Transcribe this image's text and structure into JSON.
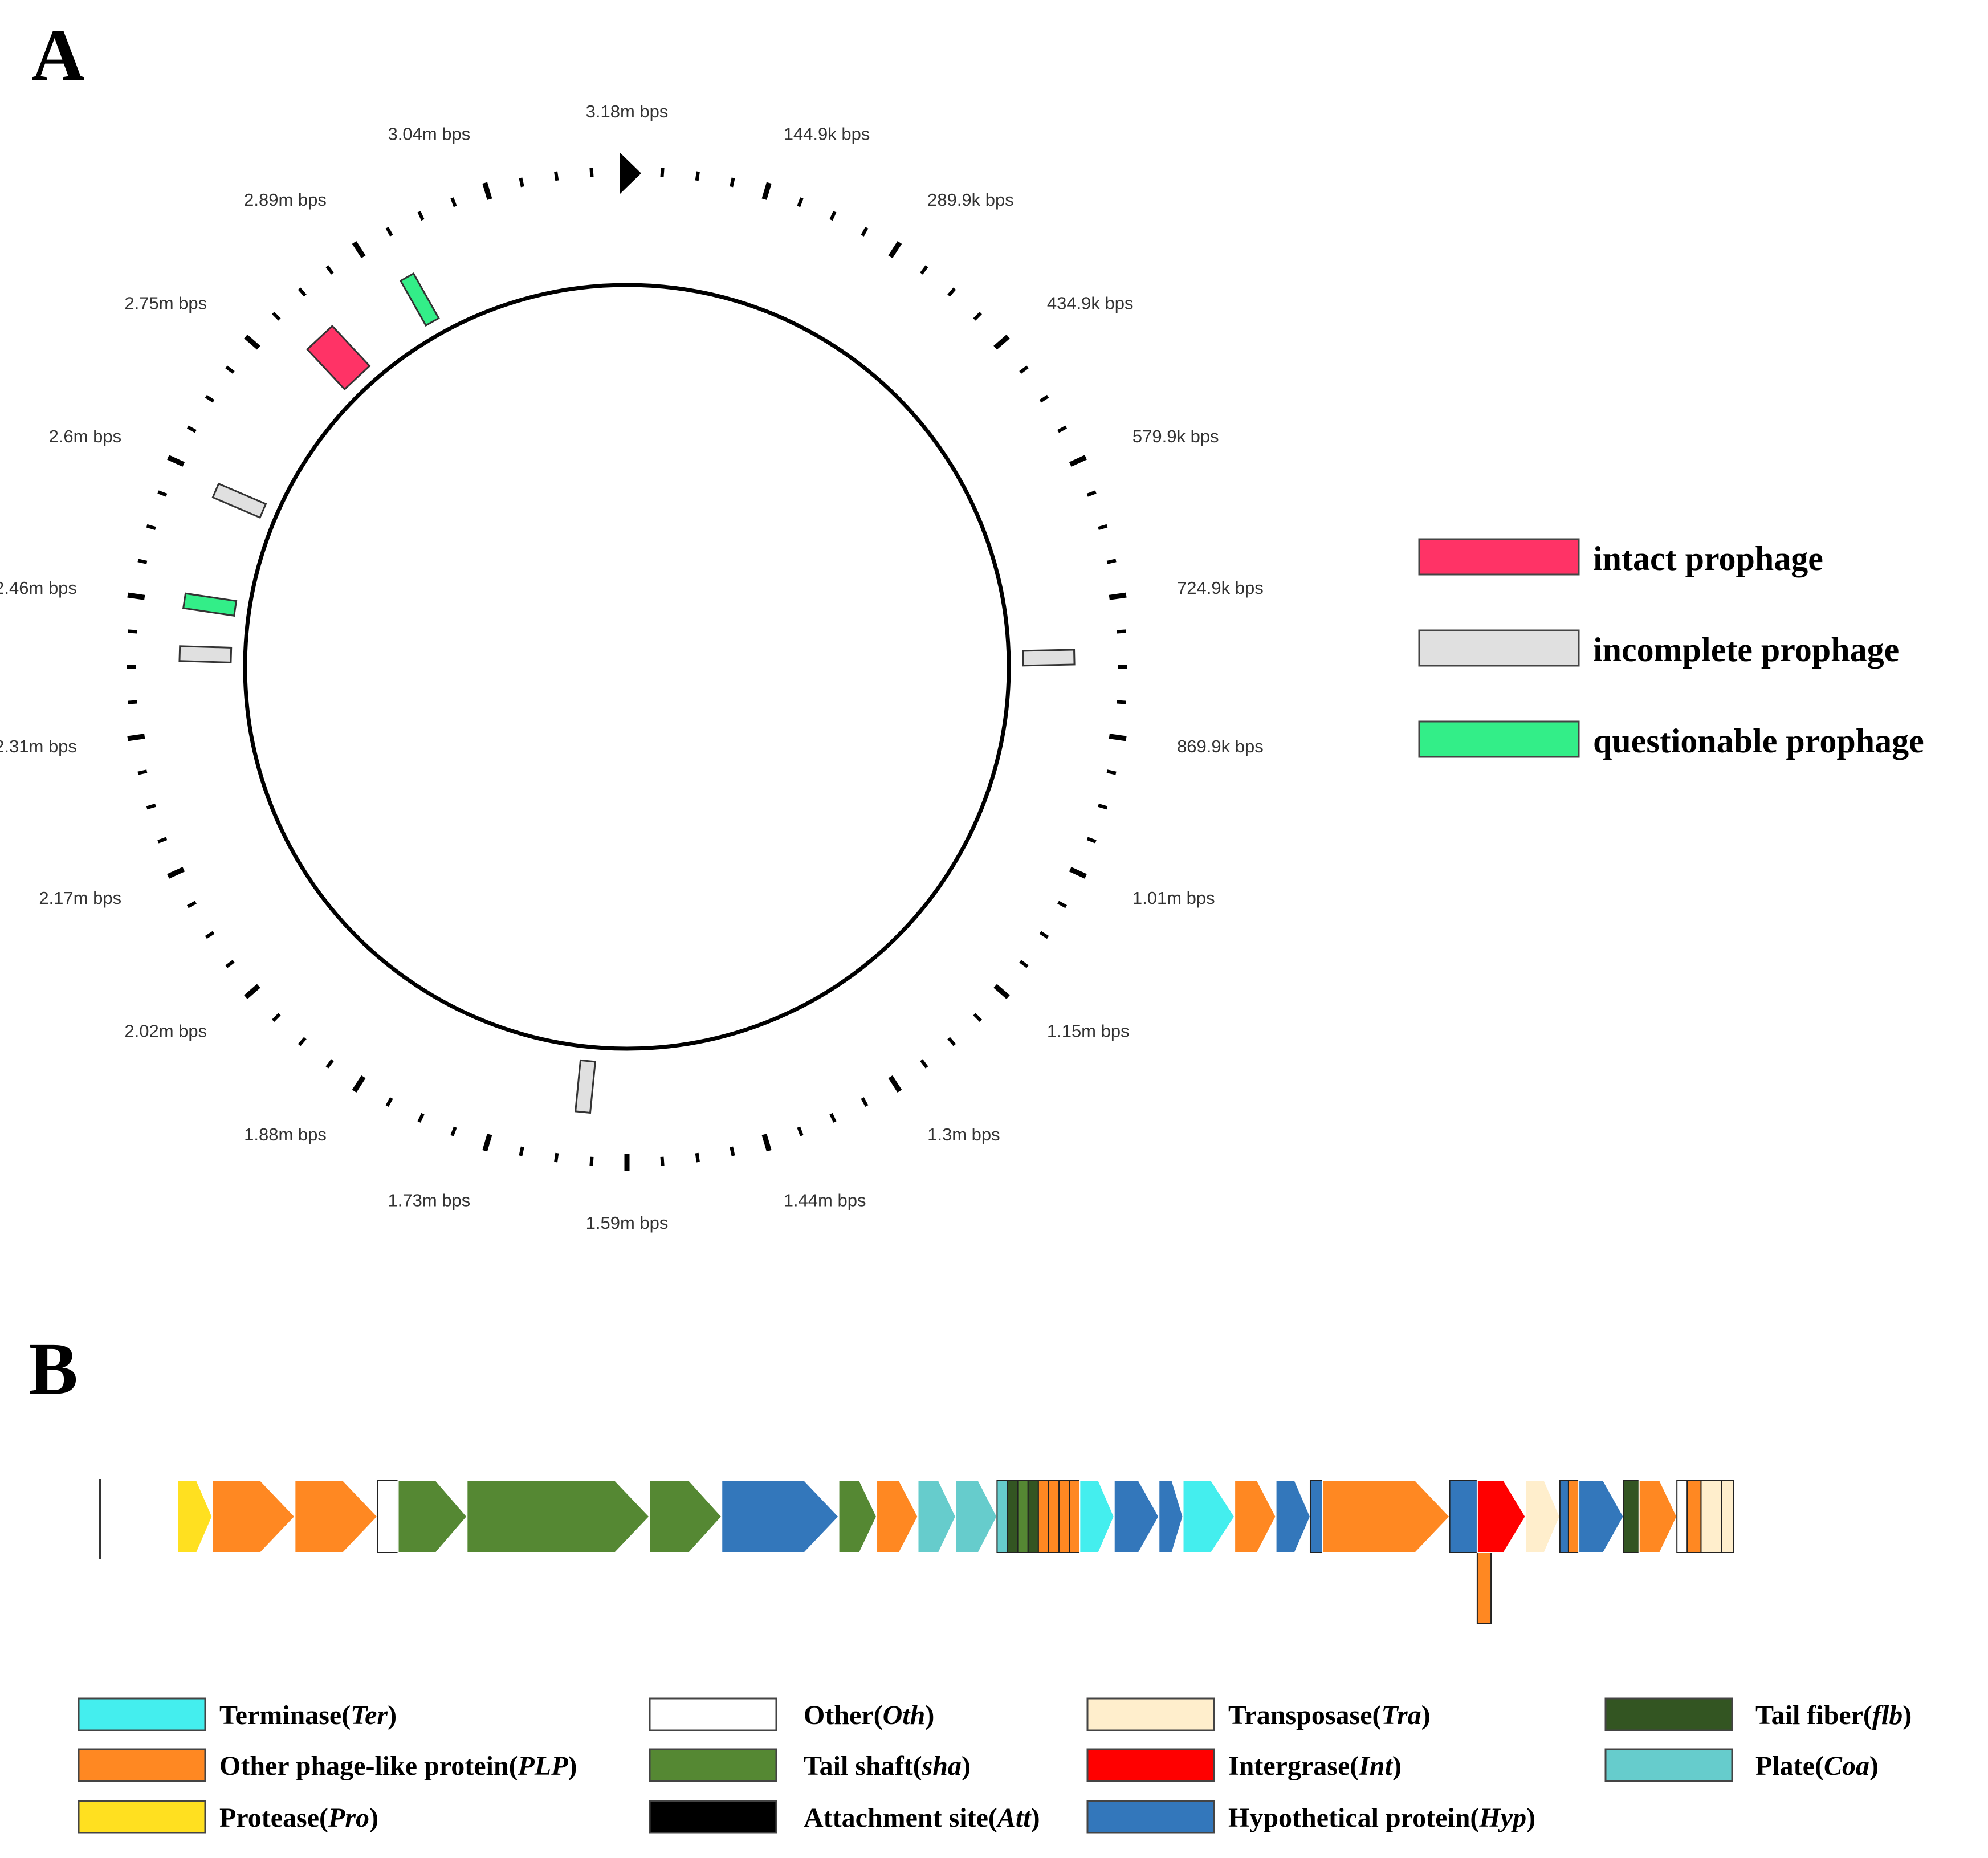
{
  "panel_a": {
    "letter": "A",
    "genome_length_bp": 3180000,
    "tick_labels": [
      "3.18m bps",
      "144.9k bps",
      "289.9k bps",
      "434.9k bps",
      "579.9k bps",
      "724.9k bps",
      "869.9k bps",
      "1.01m bps",
      "1.15m bps",
      "1.3m bps",
      "1.44m bps",
      "1.59m bps",
      "1.73m bps",
      "1.88m bps",
      "2.02m bps",
      "2.17m bps",
      "2.31m bps",
      "2.46m bps",
      "2.6m bps",
      "2.75m bps",
      "2.89m bps",
      "3.04m bps"
    ],
    "regions": [
      {
        "type": "questionable",
        "position_bp": 2920000
      },
      {
        "type": "intact",
        "position_bp": 2800000
      },
      {
        "type": "incomplete",
        "position_bp": 2590000
      },
      {
        "type": "questionable",
        "position_bp": 2460000
      },
      {
        "type": "incomplete",
        "position_bp": 2400000
      },
      {
        "type": "incomplete",
        "position_bp": 784000
      },
      {
        "type": "incomplete",
        "position_bp": 1640000
      }
    ],
    "legend": [
      {
        "type": "intact",
        "label": "intact prophage",
        "color": "#ff3366"
      },
      {
        "type": "incomplete",
        "label": "incomplete prophage",
        "color": "#e0e0e0"
      },
      {
        "type": "questionable",
        "label": "questionable prophage",
        "color": "#33ee88"
      }
    ]
  },
  "panel_b": {
    "letter": "B",
    "genes": [
      {
        "cat": "Pro",
        "dir": "arrow",
        "rel_len": 1.0
      },
      {
        "cat": "PLP",
        "dir": "arrow",
        "rel_len": 2.4
      },
      {
        "cat": "PLP",
        "dir": "arrow",
        "rel_len": 2.4
      },
      {
        "cat": "Oth",
        "dir": "bar",
        "rel_len": 0.6
      },
      {
        "cat": "sha",
        "dir": "arrow",
        "rel_len": 2.0
      },
      {
        "cat": "sha",
        "dir": "arrow",
        "rel_len": 5.3
      },
      {
        "cat": "sha",
        "dir": "arrow",
        "rel_len": 2.1
      },
      {
        "cat": "Hyp",
        "dir": "arrow",
        "rel_len": 3.4
      },
      {
        "cat": "sha",
        "dir": "arrow",
        "rel_len": 1.1
      },
      {
        "cat": "PLP",
        "dir": "arrow",
        "rel_len": 1.2
      },
      {
        "cat": "Coa",
        "dir": "arrow",
        "rel_len": 1.1
      },
      {
        "cat": "Coa",
        "dir": "arrow",
        "rel_len": 1.2
      },
      {
        "cat": "Coa",
        "dir": "bar",
        "rel_len": 0.3
      },
      {
        "cat": "flb",
        "dir": "bar",
        "rel_len": 0.3
      },
      {
        "cat": "sha",
        "dir": "bar",
        "rel_len": 0.3
      },
      {
        "cat": "flb",
        "dir": "bar",
        "rel_len": 0.3
      },
      {
        "cat": "PLP",
        "dir": "bar",
        "rel_len": 0.3
      },
      {
        "cat": "PLP",
        "dir": "bar",
        "rel_len": 0.3
      },
      {
        "cat": "PLP",
        "dir": "bar",
        "rel_len": 0.3
      },
      {
        "cat": "PLP",
        "dir": "bar",
        "rel_len": 0.3
      },
      {
        "cat": "Ter",
        "dir": "arrow",
        "rel_len": 1.0
      },
      {
        "cat": "Hyp",
        "dir": "arrow",
        "rel_len": 1.3
      },
      {
        "cat": "Hyp",
        "dir": "arrow",
        "rel_len": 0.7
      },
      {
        "cat": "Ter",
        "dir": "arrow",
        "rel_len": 1.5
      },
      {
        "cat": "PLP",
        "dir": "arrow",
        "rel_len": 1.2
      },
      {
        "cat": "Hyp",
        "dir": "arrow",
        "rel_len": 1.0
      },
      {
        "cat": "Hyp",
        "dir": "bar",
        "rel_len": 0.35
      },
      {
        "cat": "PLP",
        "dir": "arrow",
        "rel_len": 3.7
      },
      {
        "cat": "Hyp",
        "dir": "bar",
        "rel_len": 0.8
      },
      {
        "cat": "PLP",
        "dir": "bar",
        "rel_len": 0.4,
        "offset": "down"
      },
      {
        "cat": "Int",
        "dir": "arrow",
        "rel_len": 1.4
      },
      {
        "cat": "Tra",
        "dir": "arrow",
        "rel_len": 1.0
      },
      {
        "cat": "Hyp",
        "dir": "bar",
        "rel_len": 0.25
      },
      {
        "cat": "PLP",
        "dir": "bar",
        "rel_len": 0.3
      },
      {
        "cat": "Hyp",
        "dir": "arrow",
        "rel_len": 1.3
      },
      {
        "cat": "flb",
        "dir": "bar",
        "rel_len": 0.45
      },
      {
        "cat": "PLP",
        "dir": "arrow",
        "rel_len": 1.1
      },
      {
        "cat": "Oth",
        "dir": "bar",
        "rel_len": 0.3
      },
      {
        "cat": "PLP",
        "dir": "bar",
        "rel_len": 0.4
      },
      {
        "cat": "Tra",
        "dir": "bar",
        "rel_len": 0.6
      },
      {
        "cat": "Tra",
        "dir": "bar",
        "rel_len": 0.35
      }
    ],
    "categories": [
      {
        "key": "Ter",
        "name": "Terminase",
        "abbr": "Ter",
        "color": "#44eeee"
      },
      {
        "key": "PLP",
        "name": "Other phage-like protein",
        "abbr": "PLP",
        "color": "#ff8822"
      },
      {
        "key": "Pro",
        "name": "Protease",
        "abbr": "Pro",
        "color": "#ffe020"
      },
      {
        "key": "Oth",
        "name": "Other",
        "abbr": "Oth",
        "color": "#ffffff"
      },
      {
        "key": "sha",
        "name": "Tail shaft",
        "abbr": "sha",
        "color": "#558833"
      },
      {
        "key": "Att",
        "name": "Attachment site",
        "abbr": "Att",
        "color": "#000000"
      },
      {
        "key": "Tra",
        "name": "Transposase",
        "abbr": "Tra",
        "color": "#ffeecc"
      },
      {
        "key": "Int",
        "name": "Intergrase",
        "abbr": "Int",
        "color": "#ff0000"
      },
      {
        "key": "Hyp",
        "name": "Hypothetical protein",
        "abbr": "Hyp",
        "color": "#3377bb"
      },
      {
        "key": "flb",
        "name": "Tail fiber",
        "abbr": "flb",
        "color": "#335522"
      },
      {
        "key": "Coa",
        "name": "Plate",
        "abbr": "Coa",
        "color": "#66cccc"
      }
    ]
  }
}
